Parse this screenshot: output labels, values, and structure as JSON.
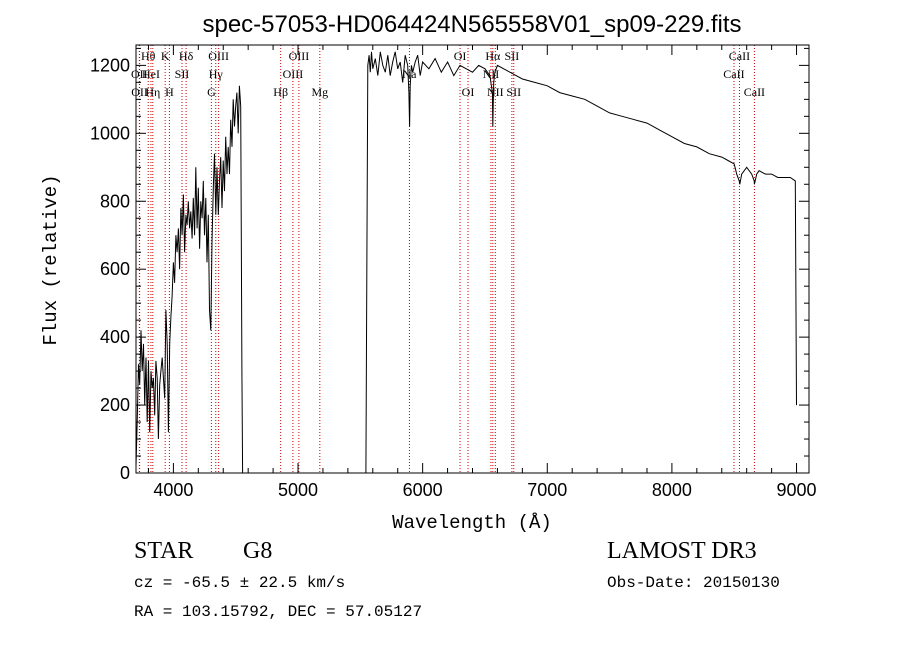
{
  "chart_data": {
    "type": "line",
    "title": "spec-57053-HD064424N565558V01_sp09-229.fits",
    "xlabel": "Wavelength (Å)",
    "ylabel": "Flux (relative)",
    "xlim": [
      3700,
      9100
    ],
    "ylim": [
      0,
      1260
    ],
    "xticks": [
      4000,
      5000,
      6000,
      7000,
      8000,
      9000
    ],
    "yticks": [
      0,
      200,
      400,
      600,
      800,
      1000,
      1200
    ],
    "x_minor_step": 200,
    "y_minor_step": 50,
    "series": [
      {
        "name": "flux",
        "segment1": {
          "x": [
            3700,
            3710,
            3720,
            3730,
            3740,
            3750,
            3760,
            3770,
            3780,
            3790,
            3800,
            3810,
            3820,
            3830,
            3840,
            3850,
            3860,
            3870,
            3880,
            3890,
            3900,
            3910,
            3920,
            3930,
            3940,
            3950,
            3960,
            3970,
            3980,
            3990,
            4000,
            4010,
            4020,
            4030,
            4040,
            4050,
            4060,
            4070,
            4080,
            4090,
            4100,
            4110,
            4120,
            4130,
            4140,
            4150,
            4160,
            4170,
            4180,
            4190,
            4200,
            4210,
            4220,
            4230,
            4240,
            4250,
            4260,
            4270,
            4280,
            4290,
            4300,
            4310,
            4320,
            4330,
            4340,
            4350,
            4360,
            4370,
            4380,
            4390,
            4400,
            4410,
            4420,
            4430,
            4440,
            4450,
            4460,
            4470,
            4480,
            4490,
            4500,
            4510,
            4520,
            4530,
            4540,
            4545,
            4550,
            4555
          ],
          "y": [
            20,
            150,
            320,
            260,
            420,
            300,
            380,
            200,
            340,
            150,
            330,
            120,
            300,
            250,
            280,
            170,
            330,
            280,
            100,
            260,
            300,
            340,
            280,
            220,
            480,
            380,
            120,
            380,
            460,
            520,
            620,
            560,
            700,
            650,
            720,
            600,
            780,
            700,
            820,
            650,
            760,
            730,
            800,
            720,
            770,
            690,
            810,
            700,
            900,
            720,
            840,
            660,
            800,
            750,
            860,
            700,
            810,
            620,
            760,
            480,
            420,
            680,
            840,
            940,
            760,
            900,
            760,
            860,
            930,
            780,
            920,
            830,
            990,
            880,
            960,
            880,
            1040,
            960,
            1100,
            1020,
            1080,
            1120,
            1000,
            1140,
            1080,
            700,
            300,
            0
          ]
        },
        "segment2": {
          "x": [
            5545,
            5550,
            5560,
            5570,
            5580,
            5590,
            5600,
            5620,
            5640,
            5660,
            5680,
            5700,
            5720,
            5740,
            5760,
            5780,
            5800,
            5820,
            5840,
            5860,
            5880,
            5890,
            5895,
            5900,
            5910,
            5920,
            5940,
            5960,
            5980,
            6000,
            6050,
            6100,
            6150,
            6200,
            6250,
            6300,
            6350,
            6400,
            6450,
            6500,
            6540,
            6560,
            6563,
            6570,
            6580,
            6600,
            6650,
            6700,
            6750,
            6800,
            6900,
            7000,
            7100,
            7200,
            7300,
            7400,
            7500,
            7600,
            7700,
            7800,
            7900,
            8000,
            8100,
            8200,
            8300,
            8400,
            8450,
            8500,
            8520,
            8540,
            8545,
            8560,
            8600,
            8640,
            8660,
            8662,
            8680,
            8700,
            8750,
            8800,
            8850,
            8900,
            8950,
            8990,
            9000
          ],
          "y": [
            0,
            450,
            1200,
            1230,
            1180,
            1240,
            1190,
            1220,
            1170,
            1240,
            1200,
            1180,
            1230,
            1170,
            1210,
            1240,
            1190,
            1210,
            1150,
            1230,
            1200,
            1120,
            1020,
            1140,
            1200,
            1180,
            1210,
            1230,
            1170,
            1210,
            1190,
            1220,
            1180,
            1210,
            1170,
            1200,
            1190,
            1180,
            1200,
            1190,
            1170,
            1120,
            1020,
            1150,
            1180,
            1200,
            1190,
            1180,
            1170,
            1160,
            1150,
            1140,
            1120,
            1110,
            1100,
            1080,
            1060,
            1050,
            1040,
            1030,
            1010,
            990,
            970,
            960,
            940,
            930,
            920,
            910,
            880,
            860,
            850,
            880,
            900,
            880,
            860,
            850,
            880,
            890,
            880,
            880,
            870,
            870,
            870,
            860,
            200
          ]
        }
      }
    ],
    "line_markers": [
      {
        "label": "OII",
        "x": 3727,
        "row": 1
      },
      {
        "label": "OII",
        "x": 3729,
        "row": 2
      },
      {
        "label": "Hθ",
        "x": 3798,
        "row": 0
      },
      {
        "label": "HeI",
        "x": 3820,
        "row": 1
      },
      {
        "label": "Hη",
        "x": 3835,
        "row": 2
      },
      {
        "label": "K",
        "x": 3934,
        "row": 0
      },
      {
        "label": "H",
        "x": 3968,
        "row": 2
      },
      {
        "label": "SII",
        "x": 4069,
        "row": 1
      },
      {
        "label": "Hδ",
        "x": 4102,
        "row": 0
      },
      {
        "label": "G",
        "x": 4305,
        "row": 2
      },
      {
        "label": "Hγ",
        "x": 4340,
        "row": 1
      },
      {
        "label": "OIII",
        "x": 4363,
        "row": 0
      },
      {
        "label": "Hβ",
        "x": 4861,
        "row": 2
      },
      {
        "label": "OIII",
        "x": 4959,
        "row": 1
      },
      {
        "label": "OIII",
        "x": 5007,
        "row": 0
      },
      {
        "label": "Mg",
        "x": 5175,
        "row": 2
      },
      {
        "label": "Na",
        "x": 5894,
        "row": 1
      },
      {
        "label": "OI",
        "x": 6300,
        "row": 0
      },
      {
        "label": "OI",
        "x": 6364,
        "row": 2
      },
      {
        "label": "NII",
        "x": 6548,
        "row": 1
      },
      {
        "label": "Hα",
        "x": 6563,
        "row": 0
      },
      {
        "label": "NII",
        "x": 6583,
        "row": 2
      },
      {
        "label": "SII",
        "x": 6716,
        "row": 0
      },
      {
        "label": "SII",
        "x": 6731,
        "row": 2
      },
      {
        "label": "CaII",
        "x": 8498,
        "row": 1
      },
      {
        "label": "CaII",
        "x": 8542,
        "row": 0
      },
      {
        "label": "CaII",
        "x": 8662,
        "row": 2
      }
    ]
  },
  "info": {
    "object_type": "STAR",
    "subclass": "G8",
    "survey": "LAMOST DR3",
    "cz": "cz = -65.5 ± 22.5 km/s",
    "obs_date": "Obs-Date: 20150130",
    "coords": "RA = 103.15792, DEC =  57.05127"
  },
  "colors": {
    "line": "#000000",
    "marker": "#cc0000",
    "axis": "#000000"
  }
}
